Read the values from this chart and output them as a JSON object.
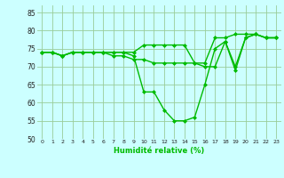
{
  "xlabel": "Humidité relative (%)",
  "x": [
    0,
    1,
    2,
    3,
    4,
    5,
    6,
    7,
    8,
    9,
    10,
    11,
    12,
    13,
    14,
    15,
    16,
    17,
    18,
    19,
    20,
    21,
    22,
    23
  ],
  "line1": [
    74,
    74,
    73,
    74,
    74,
    74,
    74,
    74,
    74,
    74,
    76,
    76,
    76,
    76,
    76,
    71,
    71,
    78,
    78,
    79,
    79,
    79,
    78,
    78
  ],
  "line2": [
    74,
    74,
    73,
    74,
    74,
    74,
    74,
    73,
    73,
    72,
    72,
    71,
    71,
    71,
    71,
    71,
    70,
    70,
    77,
    70,
    78,
    79,
    78,
    78
  ],
  "line3": [
    74,
    74,
    73,
    74,
    74,
    74,
    74,
    74,
    74,
    73,
    63,
    63,
    58,
    55,
    55,
    56,
    65,
    75,
    77,
    69,
    78,
    79,
    78,
    78
  ],
  "ylim": [
    50,
    87
  ],
  "yticks": [
    50,
    55,
    60,
    65,
    70,
    75,
    80,
    85
  ],
  "xticks": [
    0,
    1,
    2,
    3,
    4,
    5,
    6,
    7,
    8,
    9,
    10,
    11,
    12,
    13,
    14,
    15,
    16,
    17,
    18,
    19,
    20,
    21,
    22,
    23
  ],
  "line_color": "#00bb00",
  "bg_color": "#ccffff",
  "grid_color": "#99cc99",
  "marker": "D",
  "marker_size": 2.0,
  "line_width": 1.0
}
